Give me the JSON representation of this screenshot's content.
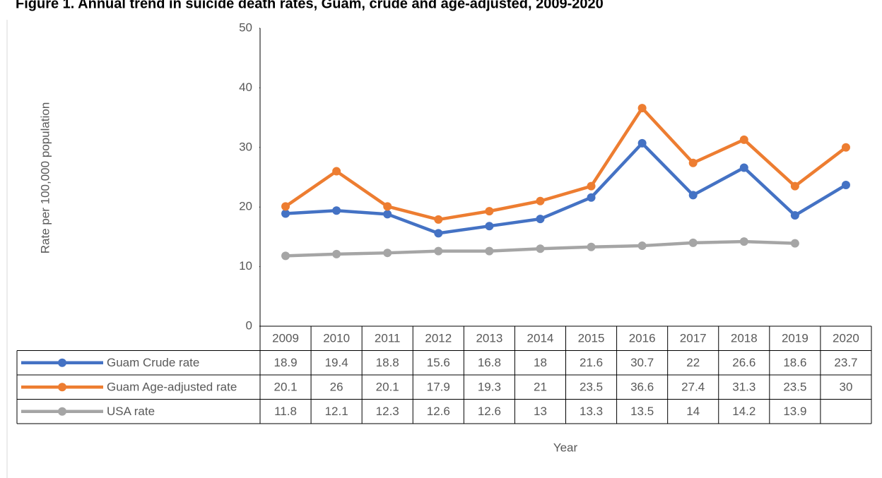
{
  "chart_data": {
    "type": "line",
    "title": "Figure 1. Annual trend in suicide death rates, Guam, crude and age-adjusted, 2009-2020",
    "y_label": "Rate per 100,000 population",
    "x_label": "Year",
    "categories": [
      "2009",
      "2010",
      "2011",
      "2012",
      "2013",
      "2014",
      "2015",
      "2016",
      "2017",
      "2018",
      "2019",
      "2020"
    ],
    "series": [
      {
        "name": "Guam Crude rate",
        "color": "#4472c4",
        "values": [
          18.9,
          19.4,
          18.8,
          15.6,
          16.8,
          18,
          21.6,
          30.7,
          22,
          26.6,
          18.6,
          23.7
        ]
      },
      {
        "name": "Guam Age-adjusted rate",
        "color": "#ed7d31",
        "values": [
          20.1,
          26,
          20.1,
          17.9,
          19.3,
          21,
          23.5,
          36.6,
          27.4,
          31.3,
          23.5,
          30
        ]
      },
      {
        "name": "USA rate",
        "color": "#a5a5a5",
        "values": [
          11.8,
          12.1,
          12.3,
          12.6,
          12.6,
          13,
          13.3,
          13.5,
          14,
          14.2,
          13.9,
          null
        ]
      }
    ],
    "ylim": [
      0,
      50
    ],
    "yticks": [
      0,
      10,
      20,
      30,
      40,
      50
    ]
  }
}
